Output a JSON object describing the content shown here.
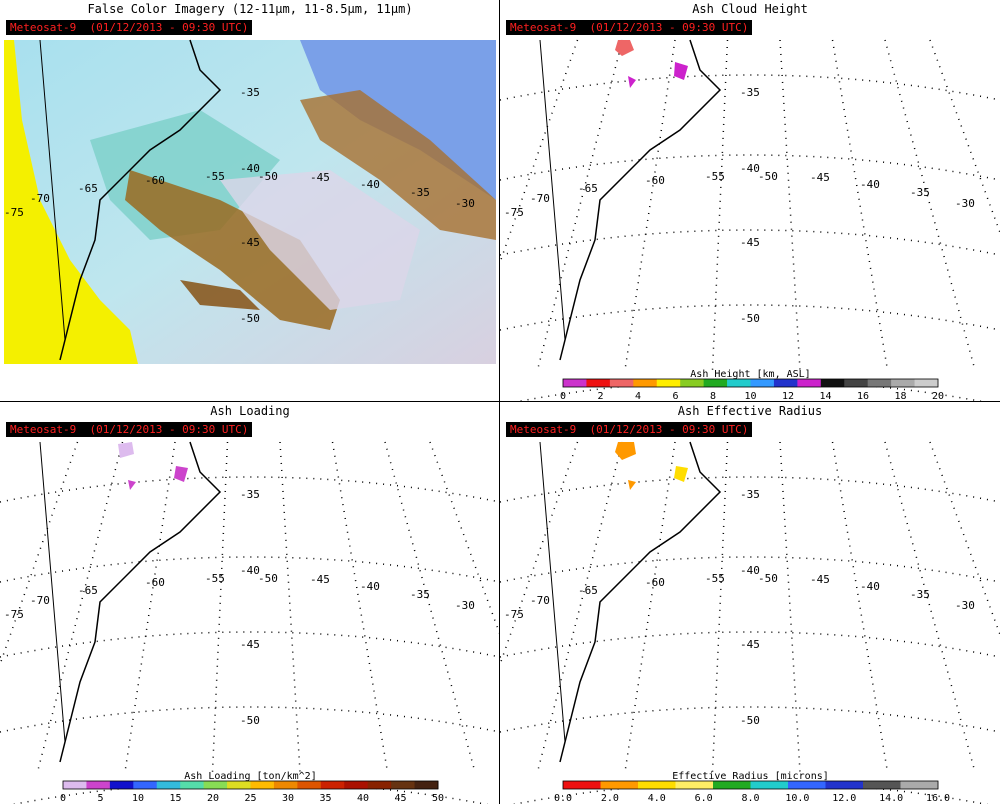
{
  "panels": [
    {
      "title": "False Color Imagery (12-11μm, 11-8.5μm, 11μm)",
      "stamp": "Meteosat-9  (01/12/2013 - 09:30 UTC)"
    },
    {
      "title": "Ash Cloud Height",
      "stamp": "Meteosat-9  (01/12/2013 - 09:30 UTC)",
      "colorbar": {
        "label": "Ash Height [km, ASL]",
        "ticks": [
          "0",
          "2",
          "4",
          "6",
          "8",
          "10",
          "12",
          "14",
          "16",
          "18",
          "20"
        ],
        "colors": [
          "#cc33cc",
          "#ee1111",
          "#ee6666",
          "#ff9900",
          "#ffee00",
          "#88cc22",
          "#22aa22",
          "#22cccc",
          "#3399ff",
          "#2233cc",
          "#cc22cc",
          "#111111",
          "#444444",
          "#777777",
          "#aaaaaa",
          "#cccccc"
        ]
      }
    },
    {
      "title": "Ash Loading",
      "stamp": "Meteosat-9  (01/12/2013 - 09:30 UTC)",
      "colorbar": {
        "label": "Ash Loading [ton/km^2]",
        "ticks": [
          "0",
          "5",
          "10",
          "15",
          "20",
          "25",
          "30",
          "35",
          "40",
          "45",
          "50"
        ],
        "colors": [
          "#ddbbee",
          "#cc44cc",
          "#1111cc",
          "#3366ff",
          "#33bbdd",
          "#55ddaa",
          "#88dd55",
          "#dddd22",
          "#ffbb00",
          "#ee8800",
          "#dd5500",
          "#cc2200",
          "#aa1100",
          "#882200",
          "#663311",
          "#442211"
        ]
      }
    },
    {
      "title": "Ash Effective Radius",
      "stamp": "Meteosat-9  (01/12/2013 - 09:30 UTC)",
      "colorbar": {
        "label": "Effective Radius [microns]",
        "ticks": [
          "0.0",
          "2.0",
          "4.0",
          "6.0",
          "8.0",
          "10.0",
          "12.0",
          "14.0",
          "16.0"
        ],
        "colors": [
          "#ee1111",
          "#ff9900",
          "#ffdd00",
          "#ffee66",
          "#22aa22",
          "#22cccc",
          "#3366ff",
          "#2233cc",
          "#555555",
          "#aaaaaa"
        ]
      }
    }
  ],
  "map_labels": {
    "longitudes": [
      "-75",
      "-70",
      "-65",
      "-60",
      "-55",
      "-50",
      "-45",
      "-40",
      "-35",
      "-30"
    ],
    "latitudes": [
      "-35",
      "-40",
      "-45",
      "-50"
    ]
  },
  "colors": {
    "stamp_bg": "#000000",
    "stamp_text": "#ff2020",
    "imagery_land": "#ffff00",
    "imagery_cloud_cyan": "#8fd8e8",
    "imagery_ash_brown": "#9a6a20"
  }
}
